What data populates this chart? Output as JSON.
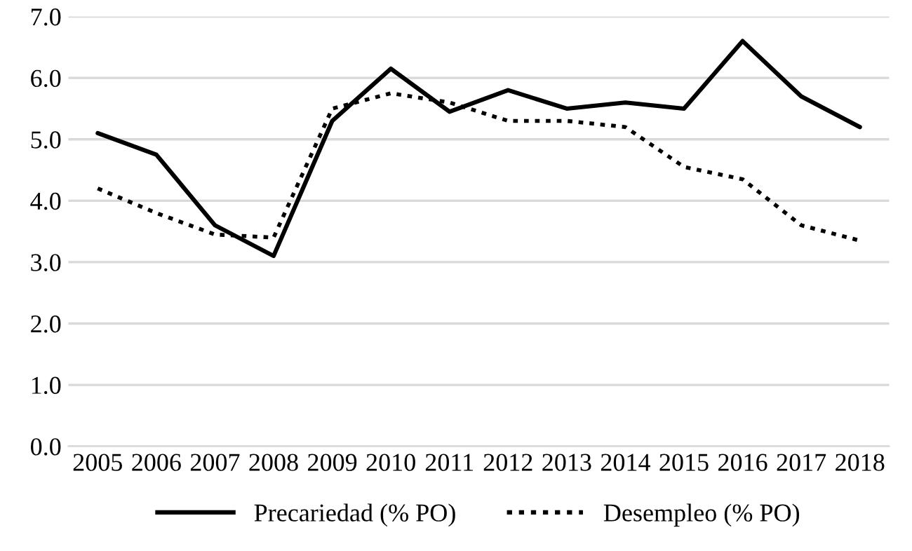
{
  "chart_data": {
    "type": "line",
    "categories": [
      "2005",
      "2006",
      "2007",
      "2008",
      "2009",
      "2010",
      "2011",
      "2012",
      "2013",
      "2014",
      "2015",
      "2016",
      "2017",
      "2018"
    ],
    "series": [
      {
        "name": "Precariedad (% PO)",
        "color": "#000000",
        "line_style": "solid",
        "values": [
          5.1,
          4.75,
          3.6,
          3.1,
          5.3,
          6.15,
          5.45,
          5.8,
          5.5,
          5.6,
          5.5,
          6.6,
          5.7,
          5.2
        ]
      },
      {
        "name": "Desempleo (% PO)",
        "color": "#000000",
        "line_style": "dotted",
        "values": [
          4.2,
          3.8,
          3.45,
          3.4,
          5.5,
          5.75,
          5.6,
          5.3,
          5.3,
          5.2,
          4.55,
          4.35,
          3.6,
          3.35
        ]
      }
    ],
    "ylim": [
      0,
      7
    ],
    "yticks": [
      {
        "value": 0,
        "label": "0.0"
      },
      {
        "value": 1,
        "label": "1.0"
      },
      {
        "value": 2,
        "label": "2.0"
      },
      {
        "value": 3,
        "label": "3.0"
      },
      {
        "value": 4,
        "label": "4.0"
      },
      {
        "value": 5,
        "label": "5.0"
      },
      {
        "value": 6,
        "label": "6.0"
      },
      {
        "value": 7,
        "label": "7.0"
      }
    ],
    "grid": "y",
    "legend": "bottom",
    "marker": "none"
  }
}
